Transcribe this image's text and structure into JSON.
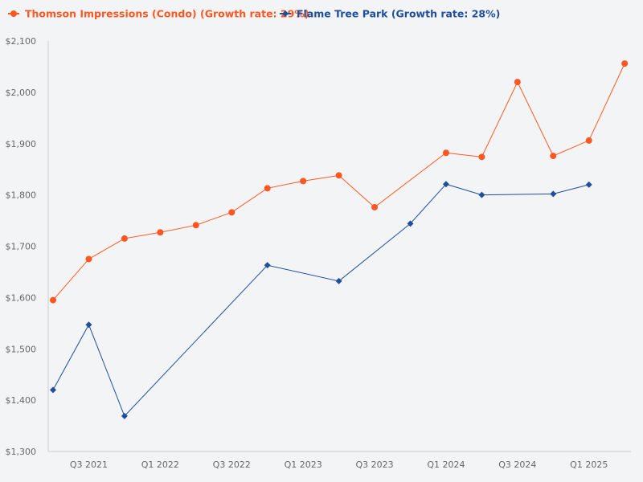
{
  "chart_data": {
    "type": "line",
    "title": "",
    "xlabel": "",
    "ylabel": "",
    "x": [
      "Q2 2021",
      "Q3 2021",
      "Q4 2021",
      "Q1 2022",
      "Q2 2022",
      "Q3 2022",
      "Q4 2022",
      "Q1 2023",
      "Q2 2023",
      "Q3 2023",
      "Q4 2023",
      "Q1 2024",
      "Q2 2024",
      "Q3 2024",
      "Q4 2024",
      "Q1 2025",
      "Q2 2025"
    ],
    "x_tick_labels": [
      "Q3 2021",
      "Q1 2022",
      "Q3 2022",
      "Q1 2023",
      "Q3 2023",
      "Q1 2024",
      "Q3 2024",
      "Q1 2025"
    ],
    "ylim": [
      1300,
      2100
    ],
    "y_ticks": [
      1300,
      1400,
      1500,
      1600,
      1700,
      1800,
      1900,
      2000,
      2100
    ],
    "y_tick_labels": [
      "$1,300",
      "$1,400",
      "$1,500",
      "$1,600",
      "$1,700",
      "$1,800",
      "$1,900",
      "$2,000",
      "$2,100"
    ],
    "legend_position": "top-left",
    "grid": false,
    "series": [
      {
        "name": "Thomson Impressions (Condo) (Growth rate: 29%)",
        "color": "#ff5722",
        "marker": "circle",
        "values": [
          1595,
          1675,
          1715,
          1727,
          1741,
          1766,
          1813,
          1827,
          1838,
          1776,
          null,
          1882,
          1874,
          2020,
          1876,
          1906,
          2056
        ]
      },
      {
        "name": "Flame Tree Park (Growth rate: 28%)",
        "color": "#1f4e9c",
        "marker": "diamond",
        "values": [
          1420,
          1547,
          1369,
          null,
          null,
          null,
          1663,
          null,
          1632,
          null,
          1744,
          1821,
          1800,
          null,
          1802,
          1820,
          null
        ]
      }
    ]
  }
}
